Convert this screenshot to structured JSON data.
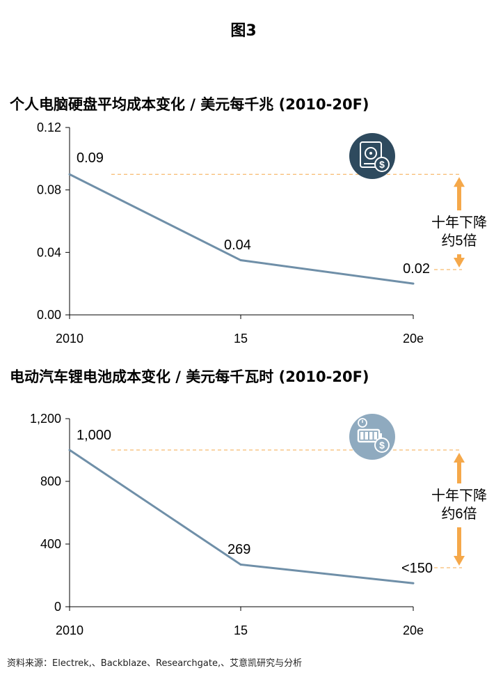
{
  "figure_title": "图3",
  "source": "资料来源：Electrek,、Backblaze、Researchgate,、艾意凯研究与分析",
  "chart_data": [
    {
      "type": "line",
      "title": "个人电脑硬盘平均成本变化 / 美元每千兆 (2010-20F)",
      "categories": [
        "2010",
        "15",
        "20e"
      ],
      "values": [
        0.09,
        0.035,
        0.02
      ],
      "data_labels": [
        "0.09",
        "0.04",
        "0.02"
      ],
      "y_ticks": [
        "0.12",
        "0.08",
        "0.04",
        "0.00"
      ],
      "ylim": [
        0,
        0.12
      ],
      "annotation_line1": "十年下降",
      "annotation_line2": "约5倍",
      "line_color": "#6f8fa8",
      "accent_color": "#f5a84a",
      "icon": "hard-drive-dollar-icon",
      "icon_bg": "#2e4a5e"
    },
    {
      "type": "line",
      "title": "电动汽车锂电池成本变化 / 美元每千瓦时 (2010-20F)",
      "categories": [
        "2010",
        "15",
        "20e"
      ],
      "values": [
        1000,
        269,
        150
      ],
      "data_labels": [
        "1,000",
        "269",
        "<150"
      ],
      "y_ticks": [
        "1,200",
        "800",
        "400",
        "0"
      ],
      "ylim": [
        0,
        1200
      ],
      "annotation_line1": "十年下降",
      "annotation_line2": "约6倍",
      "line_color": "#6f8fa8",
      "accent_color": "#f5a84a",
      "icon": "battery-dollar-icon",
      "icon_bg": "#8faabf"
    }
  ]
}
